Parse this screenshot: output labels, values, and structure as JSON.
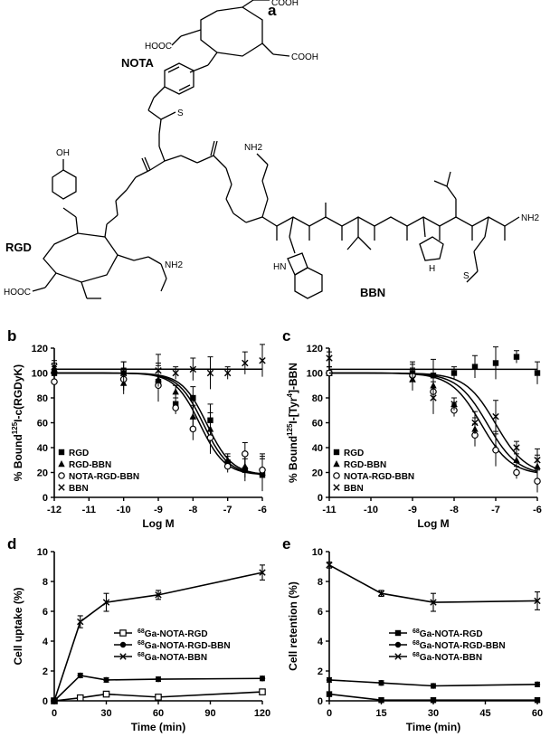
{
  "figure": {
    "panels": [
      "a",
      "b",
      "c",
      "d",
      "e"
    ]
  },
  "structure": {
    "panel": "a",
    "labels": {
      "nota": "NOTA",
      "rgd": "RGD",
      "bbn": "BBN",
      "cooh_top": "COOH",
      "cooh_left": "HOOC",
      "cooh_right": "COOH",
      "cooh_rgd": "HOOC",
      "oh": "OH",
      "nh2_gln": "NH2",
      "nh2_arg": "NH2",
      "nh2_cterm": "NH2",
      "nh_indole": "HN",
      "nh_his": "H",
      "s_thiourea": "S",
      "s_met": "S"
    }
  },
  "chart_data": [
    {
      "panel": "b",
      "type": "scatter",
      "title": "",
      "xlabel": "Log M",
      "ylabel": "% Bound 125I-c(RGDyK)",
      "ylabel_parts": {
        "pre": "% Bound",
        "sup": "125",
        "post": "I-c(RGDyK)"
      },
      "xlim": [
        -12,
        -6
      ],
      "ylim": [
        0,
        120
      ],
      "xticks": [
        -12,
        -11,
        -10,
        -9,
        -8,
        -7,
        -6
      ],
      "yticks": [
        0,
        20,
        40,
        60,
        80,
        100,
        120
      ],
      "legend_position": "lower-left",
      "series": [
        {
          "name": "RGD",
          "marker": "square",
          "x": [
            -12,
            -10,
            -9,
            -8.5,
            -8,
            -7.5,
            -7,
            -6.5,
            -6
          ],
          "y": [
            100,
            100,
            93,
            75,
            80,
            62,
            28,
            22,
            18
          ],
          "fit_ic50_log": -7.6
        },
        {
          "name": "RGD-BBN",
          "marker": "triangle",
          "x": [
            -12,
            -10,
            -9,
            -8.5,
            -8,
            -7.5,
            -7,
            -6.5,
            -6
          ],
          "y": [
            103,
            92,
            95,
            85,
            65,
            55,
            30,
            25,
            20
          ],
          "fit_ic50_log": -7.7
        },
        {
          "name": "NOTA-RGD-BBN",
          "marker": "circle-open",
          "x": [
            -12,
            -10,
            -9,
            -8.5,
            -8,
            -7.5,
            -7,
            -6.5,
            -6
          ],
          "y": [
            93,
            95,
            90,
            72,
            55,
            48,
            25,
            35,
            22
          ],
          "fit_ic50_log": -7.8
        },
        {
          "name": "BBN",
          "marker": "x",
          "x": [
            -12,
            -10,
            -9,
            -8.5,
            -8,
            -7.5,
            -7,
            -6.5,
            -6
          ],
          "y": [
            105,
            100,
            102,
            100,
            103,
            100,
            100,
            108,
            110
          ],
          "fit": "flat"
        }
      ]
    },
    {
      "panel": "c",
      "type": "scatter",
      "title": "",
      "xlabel": "Log M",
      "ylabel": "% Bound 125I-[Tyr4]-BBN",
      "ylabel_parts": {
        "pre": "% Bound",
        "sup": "125",
        "post": "I-[Tyr",
        "sup2": "4",
        "post2": "]-BBN"
      },
      "xlim": [
        -11,
        -6
      ],
      "ylim": [
        0,
        120
      ],
      "xticks": [
        -11,
        -10,
        -9,
        -8,
        -7,
        -6
      ],
      "yticks": [
        0,
        20,
        40,
        60,
        80,
        100,
        120
      ],
      "legend_position": "lower-left",
      "series": [
        {
          "name": "RGD",
          "marker": "square",
          "x": [
            -11,
            -9,
            -8.5,
            -8,
            -7.5,
            -7,
            -6.5,
            -6
          ],
          "y": [
            100,
            100,
            98,
            100,
            105,
            108,
            113,
            100
          ],
          "fit": "flat"
        },
        {
          "name": "RGD-BBN",
          "marker": "triangle",
          "x": [
            -11,
            -9,
            -8.5,
            -8,
            -7.5,
            -7,
            -6.5,
            -6
          ],
          "y": [
            100,
            95,
            90,
            75,
            55,
            40,
            30,
            25
          ],
          "fit_ic50_log": -7.2
        },
        {
          "name": "NOTA-RGD-BBN",
          "marker": "circle-open",
          "x": [
            -11,
            -9,
            -8.5,
            -8,
            -7.5,
            -7,
            -6.5,
            -6
          ],
          "y": [
            100,
            98,
            85,
            70,
            50,
            38,
            20,
            13
          ],
          "fit_ic50_log": -7.35
        },
        {
          "name": "BBN",
          "marker": "x",
          "x": [
            -11,
            -9,
            -8.5,
            -8,
            -7.5,
            -7,
            -6.5,
            -6
          ],
          "y": [
            112,
            95,
            80,
            75,
            60,
            65,
            40,
            30
          ],
          "fit_ic50_log": -7.0
        }
      ]
    },
    {
      "panel": "d",
      "type": "line",
      "title": "",
      "xlabel": "Time (min)",
      "ylabel": "Cell uptake (%)",
      "xlim": [
        0,
        120
      ],
      "ylim": [
        0,
        10
      ],
      "xticks": [
        0,
        30,
        60,
        90,
        120
      ],
      "yticks": [
        0,
        2,
        4,
        6,
        8,
        10
      ],
      "legend_position": "center-right",
      "series": [
        {
          "name": "68Ga-NOTA-RGD",
          "label_sup": "68",
          "label_rest": "Ga-NOTA-RGD",
          "marker": "square-open",
          "x": [
            0,
            15,
            30,
            60,
            120
          ],
          "y": [
            0,
            0.2,
            0.45,
            0.25,
            0.6
          ]
        },
        {
          "name": "68Ga-NOTA-RGD-BBN",
          "label_sup": "68",
          "label_rest": "Ga-NOTA-RGD-BBN",
          "marker": "circle",
          "x": [
            0,
            15,
            30,
            60,
            120
          ],
          "y": [
            0,
            1.7,
            1.4,
            1.45,
            1.5
          ]
        },
        {
          "name": "68Ga-NOTA-BBN",
          "label_sup": "68",
          "label_rest": "Ga-NOTA-BBN",
          "marker": "x",
          "x": [
            0,
            15,
            30,
            60,
            120
          ],
          "y": [
            0,
            5.3,
            6.6,
            7.1,
            8.6
          ],
          "err": [
            0,
            0.4,
            0.6,
            0.3,
            0.5
          ]
        }
      ]
    },
    {
      "panel": "e",
      "type": "line",
      "title": "",
      "xlabel": "Time (min)",
      "ylabel": "Cell retention (%)",
      "xlim": [
        0,
        60
      ],
      "ylim": [
        0,
        10
      ],
      "xticks": [
        0,
        15,
        30,
        45,
        60
      ],
      "yticks": [
        0,
        2,
        4,
        6,
        8,
        10
      ],
      "legend_position": "center-right",
      "series": [
        {
          "name": "68Ga-NOTA-RGD",
          "label_sup": "68",
          "label_rest": "Ga-NOTA-RGD",
          "marker": "square",
          "x": [
            0,
            15,
            30,
            60
          ],
          "y": [
            0.45,
            0.05,
            0.05,
            0.05
          ]
        },
        {
          "name": "68Ga-NOTA-RGD-BBN",
          "label_sup": "68",
          "label_rest": "Ga-NOTA-RGD-BBN",
          "marker": "circle",
          "x": [
            0,
            15,
            30,
            60
          ],
          "y": [
            1.4,
            1.2,
            1.0,
            1.1
          ]
        },
        {
          "name": "68Ga-NOTA-BBN",
          "label_sup": "68",
          "label_rest": "Ga-NOTA-BBN",
          "marker": "x",
          "x": [
            0,
            15,
            30,
            60
          ],
          "y": [
            9.1,
            7.2,
            6.6,
            6.7
          ],
          "err": [
            0.2,
            0.2,
            0.6,
            0.6
          ]
        }
      ]
    }
  ]
}
